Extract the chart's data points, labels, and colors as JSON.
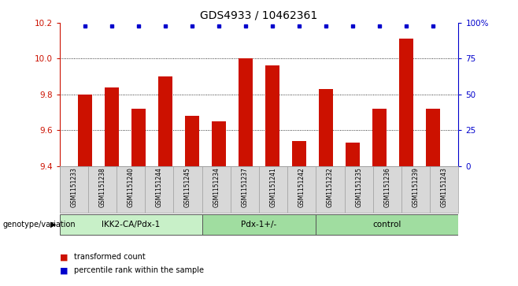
{
  "title": "GDS4933 / 10462361",
  "samples": [
    "GSM1151233",
    "GSM1151238",
    "GSM1151240",
    "GSM1151244",
    "GSM1151245",
    "GSM1151234",
    "GSM1151237",
    "GSM1151241",
    "GSM1151242",
    "GSM1151232",
    "GSM1151235",
    "GSM1151236",
    "GSM1151239",
    "GSM1151243"
  ],
  "bar_values": [
    9.8,
    9.84,
    9.72,
    9.9,
    9.68,
    9.65,
    10.0,
    9.96,
    9.54,
    9.83,
    9.53,
    9.72,
    10.11,
    9.72
  ],
  "percentile_values": [
    98,
    98,
    98,
    98,
    98,
    98,
    98,
    98,
    98,
    98,
    98,
    98,
    98,
    98
  ],
  "bar_color": "#cc1100",
  "dot_color": "#0000cc",
  "ylim_left": [
    9.4,
    10.2
  ],
  "ylim_right": [
    0,
    100
  ],
  "yticks_left": [
    9.4,
    9.6,
    9.8,
    10.0,
    10.2
  ],
  "yticks_right": [
    0,
    25,
    50,
    75,
    100
  ],
  "grid_values": [
    9.6,
    9.8,
    10.0
  ],
  "title_fontsize": 10,
  "groups": [
    {
      "label": "IKK2-CA/Pdx-1",
      "start": 0,
      "end": 5,
      "color": "#c8f0c8"
    },
    {
      "label": "Pdx-1+/-",
      "start": 5,
      "end": 9,
      "color": "#a0dda0"
    },
    {
      "label": "control",
      "start": 9,
      "end": 14,
      "color": "#a0dda0"
    }
  ],
  "legend_items": [
    {
      "label": "transformed count",
      "color": "#cc1100"
    },
    {
      "label": "percentile rank within the sample",
      "color": "#0000cc"
    }
  ]
}
